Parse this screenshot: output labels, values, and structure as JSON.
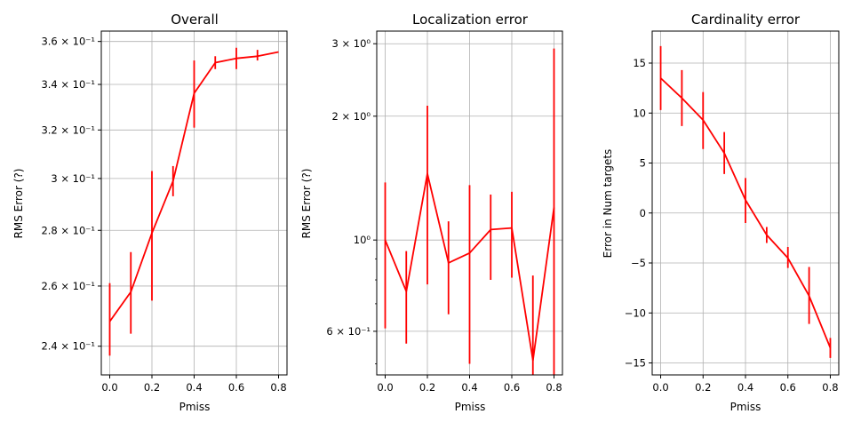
{
  "colors": {
    "line": "#ff0000",
    "grid": "#b0b0b0",
    "axis": "#000000"
  },
  "chart_data": [
    {
      "type": "line",
      "title": "Overall",
      "xlabel": "Pmiss",
      "ylabel": "RMS Error (?)",
      "yscale": "log",
      "grid": true,
      "xlim": [
        -0.04,
        0.84
      ],
      "ylim": [
        0.231,
        0.365
      ],
      "xticks": [
        0,
        0.2,
        0.4,
        0.6,
        0.8
      ],
      "xtick_labels": [
        "0.0",
        "0.2",
        "0.4",
        "0.6",
        "0.8"
      ],
      "yticks": [
        0.24,
        0.26,
        0.28,
        0.3,
        0.32,
        0.34,
        0.36
      ],
      "ytick_labels": [
        "2.4 × 10⁻¹",
        "2.6 × 10⁻¹",
        "2.8 × 10⁻¹",
        "3 × 10⁻¹",
        "3.2 × 10⁻¹",
        "3.4 × 10⁻¹",
        "3.6 × 10⁻¹"
      ],
      "x": [
        0,
        0.1,
        0.2,
        0.3,
        0.4,
        0.5,
        0.6,
        0.7,
        0.8
      ],
      "y": [
        0.248,
        0.258,
        0.279,
        0.299,
        0.336,
        0.35,
        0.352,
        0.353,
        0.355
      ],
      "err_low": [
        0.237,
        0.244,
        0.255,
        0.293,
        0.321,
        0.347,
        0.347,
        0.351,
        0.355
      ],
      "err_high": [
        0.261,
        0.272,
        0.303,
        0.305,
        0.351,
        0.353,
        0.357,
        0.356,
        0.355
      ]
    },
    {
      "type": "line",
      "title": "Localization error",
      "xlabel": "Pmiss",
      "ylabel": "RMS Error (?)",
      "yscale": "log",
      "grid": true,
      "xlim": [
        -0.04,
        0.84
      ],
      "ylim": [
        0.47,
        3.22
      ],
      "xticks": [
        0,
        0.2,
        0.4,
        0.6,
        0.8
      ],
      "xtick_labels": [
        "0.0",
        "0.2",
        "0.4",
        "0.6",
        "0.8"
      ],
      "yticks": [
        0.6,
        1,
        2,
        3
      ],
      "ytick_labels": [
        "6 × 10⁻¹",
        "10⁰",
        "2 × 10⁰",
        "3 × 10⁰"
      ],
      "minor_yticks": [
        0.5,
        0.7,
        0.8,
        0.9
      ],
      "x": [
        0,
        0.1,
        0.2,
        0.3,
        0.4,
        0.5,
        0.6,
        0.7,
        0.8
      ],
      "y": [
        1.0,
        0.75,
        1.45,
        0.88,
        0.93,
        1.06,
        1.07,
        0.51,
        1.2
      ],
      "err_low": [
        0.61,
        0.56,
        0.78,
        0.66,
        0.5,
        0.8,
        0.81,
        0.47,
        0.47
      ],
      "err_high": [
        1.38,
        0.94,
        2.12,
        1.11,
        1.36,
        1.29,
        1.31,
        0.82,
        2.92
      ]
    },
    {
      "type": "line",
      "title": "Cardinality error",
      "xlabel": "Pmiss",
      "ylabel": "Error in Num targets",
      "yscale": "linear",
      "grid": true,
      "xlim": [
        -0.04,
        0.84
      ],
      "ylim": [
        -16.2,
        18.2
      ],
      "xticks": [
        0,
        0.2,
        0.4,
        0.6,
        0.8
      ],
      "xtick_labels": [
        "0.0",
        "0.2",
        "0.4",
        "0.6",
        "0.8"
      ],
      "yticks": [
        -15,
        -10,
        -5,
        0,
        5,
        10,
        15
      ],
      "ytick_labels": [
        "−15",
        "−10",
        "−5",
        "0",
        "5",
        "10",
        "15"
      ],
      "x": [
        0,
        0.1,
        0.2,
        0.3,
        0.4,
        0.5,
        0.6,
        0.7,
        0.8
      ],
      "y": [
        13.5,
        11.5,
        9.3,
        6.0,
        1.3,
        -2.2,
        -4.5,
        -8.3,
        -13.5
      ],
      "err_low": [
        10.3,
        8.7,
        6.4,
        3.9,
        -1.0,
        -3.0,
        -5.5,
        -11.1,
        -14.5
      ],
      "err_high": [
        16.7,
        14.3,
        12.1,
        8.1,
        3.5,
        -1.4,
        -3.4,
        -5.4,
        -12.5
      ]
    }
  ]
}
